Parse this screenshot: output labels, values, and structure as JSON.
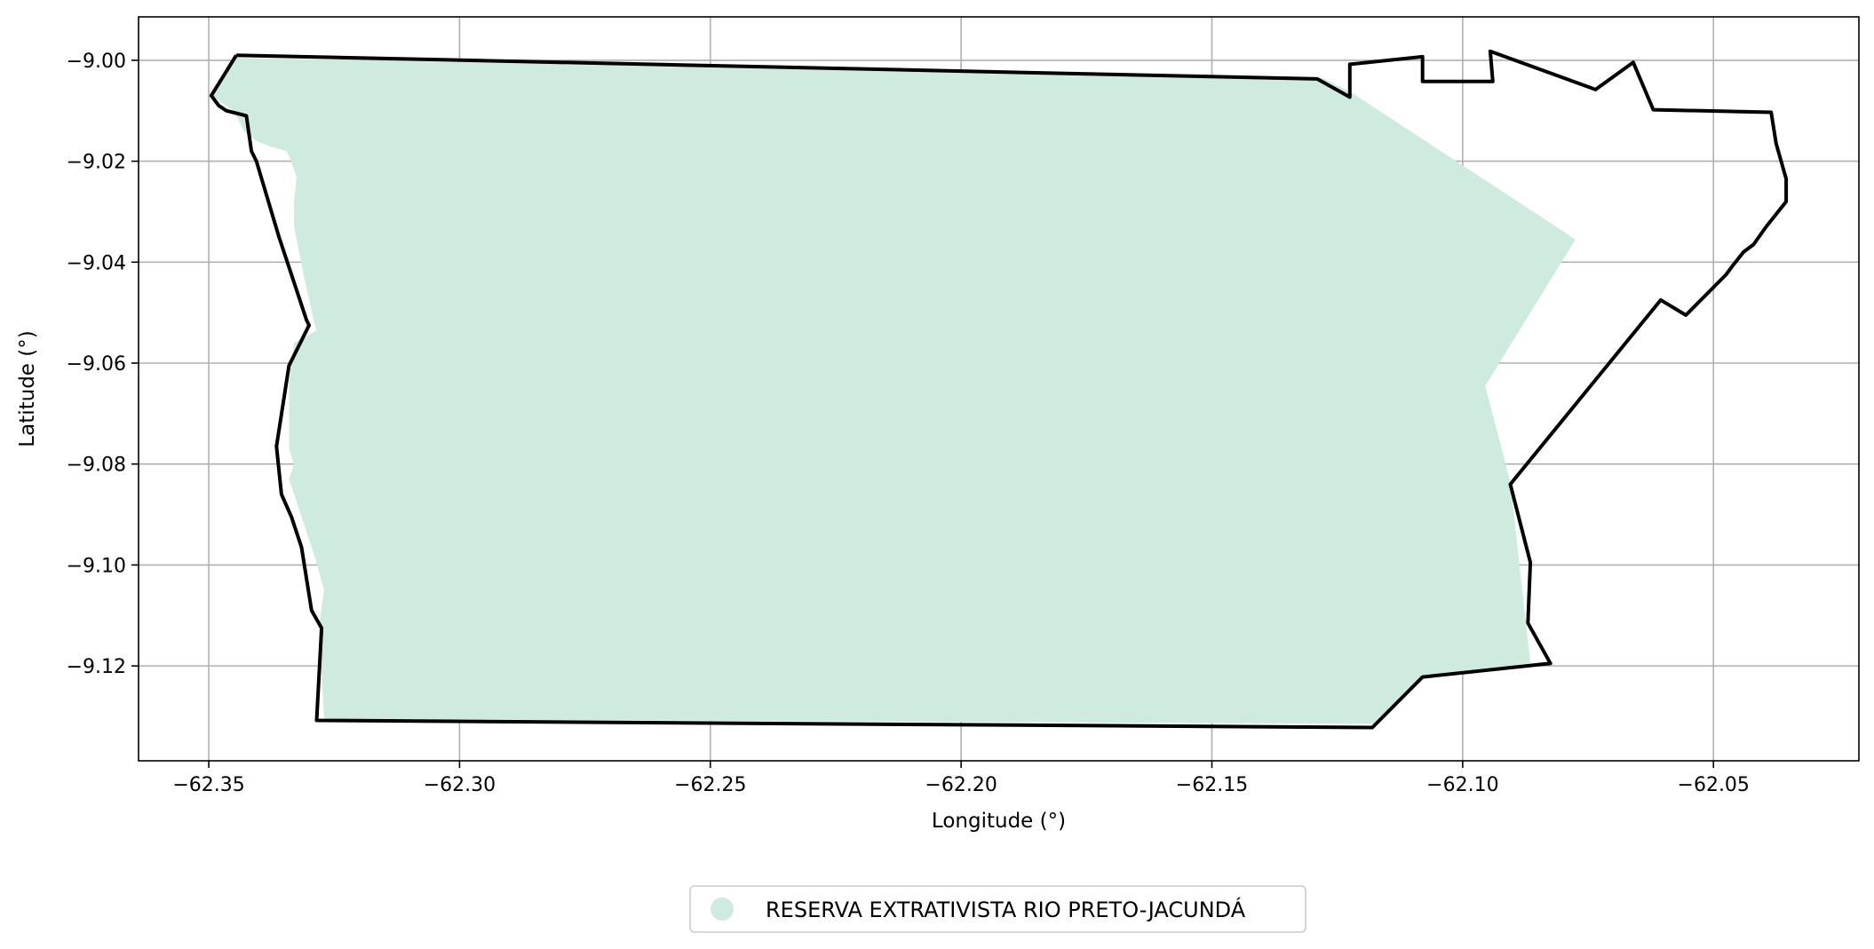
{
  "chart_data": {
    "type": "map",
    "xlabel": "Longitude (°)",
    "ylabel": "Latitude (°)",
    "xlim": [
      -62.364,
      -62.021
    ],
    "ylim": [
      -9.1388,
      -8.9914
    ],
    "grid": true,
    "x_ticks": [
      {
        "value": -62.35,
        "label": "−62.35"
      },
      {
        "value": -62.3,
        "label": "−62.30"
      },
      {
        "value": -62.25,
        "label": "−62.25"
      },
      {
        "value": -62.2,
        "label": "−62.20"
      },
      {
        "value": -62.15,
        "label": "−62.15"
      },
      {
        "value": -62.1,
        "label": "−62.10"
      },
      {
        "value": -62.05,
        "label": "−62.05"
      }
    ],
    "y_ticks": [
      {
        "value": -9.0,
        "label": "−9.00"
      },
      {
        "value": -9.02,
        "label": "−9.02"
      },
      {
        "value": -9.04,
        "label": "−9.04"
      },
      {
        "value": -9.06,
        "label": "−9.06"
      },
      {
        "value": -9.08,
        "label": "−9.08"
      },
      {
        "value": -9.1,
        "label": "−9.10"
      },
      {
        "value": -9.12,
        "label": "−9.12"
      }
    ],
    "legend": {
      "placement": "bottom-center",
      "entries": [
        {
          "label": "RESERVA EXTRATIVISTA RIO PRETO-JACUNDÁ",
          "color": "#cfebdf"
        }
      ]
    },
    "fill_color": "#cfebdf",
    "outline_color": "#000000",
    "filled_area": [
      [
        -62.345,
        -8.9995
      ],
      [
        -62.128,
        -9.0035
      ],
      [
        -62.122,
        -9.0065
      ],
      [
        -62.0775,
        -9.0355
      ],
      [
        -62.0955,
        -9.0645
      ],
      [
        -62.0905,
        -9.0835
      ],
      [
        -62.0865,
        -9.1195
      ],
      [
        -62.108,
        -9.122
      ],
      [
        -62.117,
        -9.1315
      ],
      [
        -62.327,
        -9.1305
      ],
      [
        -62.328,
        -9.112
      ],
      [
        -62.327,
        -9.105
      ],
      [
        -62.329,
        -9.098
      ],
      [
        -62.333,
        -9.086
      ],
      [
        -62.334,
        -9.083
      ],
      [
        -62.333,
        -9.08
      ],
      [
        -62.334,
        -9.077
      ],
      [
        -62.334,
        -9.064
      ],
      [
        -62.333,
        -9.056
      ],
      [
        -62.3285,
        -9.0535
      ],
      [
        -62.329,
        -9.052
      ],
      [
        -62.331,
        -9.043
      ],
      [
        -62.333,
        -9.033
      ],
      [
        -62.333,
        -9.028
      ],
      [
        -62.3325,
        -9.023
      ],
      [
        -62.334,
        -9.019
      ],
      [
        -62.3345,
        -9.018
      ],
      [
        -62.338,
        -9.017
      ],
      [
        -62.3405,
        -9.016
      ],
      [
        -62.343,
        -9.014
      ],
      [
        -62.345,
        -9.01
      ],
      [
        -62.3495,
        -9.007
      ]
    ],
    "outline": [
      [
        -62.3445,
        -8.999
      ],
      [
        -62.129,
        -9.0037
      ],
      [
        -62.1225,
        -9.0073
      ],
      [
        -62.1225,
        -9.0008
      ],
      [
        -62.108,
        -8.9993
      ],
      [
        -62.108,
        -9.0042
      ],
      [
        -62.094,
        -9.0042
      ],
      [
        -62.0945,
        -8.9982
      ],
      [
        -62.0735,
        -9.0058
      ],
      [
        -62.066,
        -9.0004
      ],
      [
        -62.062,
        -9.0098
      ],
      [
        -62.0385,
        -9.0103
      ],
      [
        -62.0375,
        -9.0165
      ],
      [
        -62.0355,
        -9.0235
      ],
      [
        -62.0355,
        -9.028
      ],
      [
        -62.0395,
        -9.033
      ],
      [
        -62.042,
        -9.0365
      ],
      [
        -62.044,
        -9.038
      ],
      [
        -62.046,
        -9.0405
      ],
      [
        -62.0475,
        -9.0425
      ],
      [
        -62.0555,
        -9.0505
      ],
      [
        -62.0605,
        -9.0475
      ],
      [
        -62.0905,
        -9.084
      ],
      [
        -62.0865,
        -9.0995
      ],
      [
        -62.087,
        -9.1115
      ],
      [
        -62.0825,
        -9.1195
      ],
      [
        -62.108,
        -9.1222
      ],
      [
        -62.118,
        -9.1322
      ],
      [
        -62.3285,
        -9.1308
      ],
      [
        -62.3275,
        -9.1125
      ],
      [
        -62.3295,
        -9.109
      ],
      [
        -62.3315,
        -9.0965
      ],
      [
        -62.3335,
        -9.0905
      ],
      [
        -62.3355,
        -9.086
      ],
      [
        -62.3365,
        -9.0765
      ],
      [
        -62.334,
        -9.0605
      ],
      [
        -62.33,
        -9.0525
      ],
      [
        -62.3305,
        -9.0515
      ],
      [
        -62.336,
        -9.035
      ],
      [
        -62.3405,
        -9.02
      ],
      [
        -62.3415,
        -9.018
      ],
      [
        -62.3425,
        -9.011
      ],
      [
        -62.3465,
        -9.01
      ],
      [
        -62.348,
        -9.009
      ],
      [
        -62.3495,
        -9.007
      ],
      [
        -62.3445,
        -8.999
      ]
    ]
  }
}
